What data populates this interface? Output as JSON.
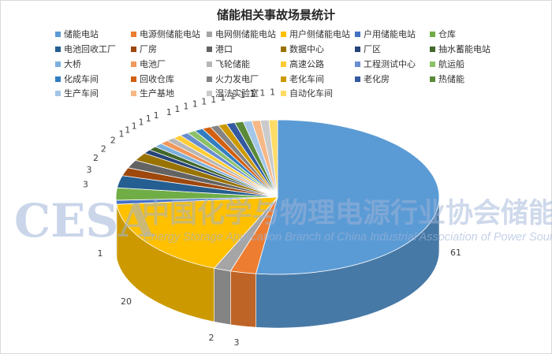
{
  "chart_data": {
    "type": "pie",
    "title": "储能相关事故场景统计",
    "legend_position": "top",
    "categories": [
      "储能电站",
      "电源侧储能电站",
      "电网侧储能电站",
      "用户侧储能电站",
      "户用储能电站",
      "仓库",
      "电池回收工厂",
      "厂房",
      "港口",
      "数据中心",
      "厂区",
      "抽水蓄能电站",
      "大桥",
      "电池厂",
      "飞轮储能",
      "高速公路",
      "工程测试中心",
      "航运船",
      "化成车间",
      "回收仓库",
      "火力发电厂",
      "老化车间",
      "老化房",
      "热储能",
      "生产车间",
      "生产基地",
      "湿法实验室",
      "自动化车间"
    ],
    "values": [
      61,
      3,
      2,
      20,
      1,
      3,
      3,
      2,
      2,
      2,
      1,
      1,
      1,
      1,
      1,
      1,
      1,
      1,
      1,
      1,
      1,
      1,
      1,
      1,
      1,
      1,
      1,
      1
    ],
    "colors": [
      "#5b9bd5",
      "#ed7d31",
      "#a5a5a5",
      "#ffc000",
      "#4472c4",
      "#70ad47",
      "#255e91",
      "#9e480e",
      "#636363",
      "#997300",
      "#264478",
      "#43682b",
      "#7cafdd",
      "#f1975a",
      "#b7b7b7",
      "#ffcd33",
      "#698ed0",
      "#8cc168",
      "#327dc2",
      "#d26012",
      "#848484",
      "#cc9a00",
      "#335aa1",
      "#5a8a39",
      "#a4c6e8",
      "#f6b887",
      "#cbcbcb",
      "#ffdc66"
    ],
    "data_labels": [
      "61",
      "3",
      "2",
      "20",
      "1",
      "3",
      "3",
      "2",
      "2",
      "2",
      "1",
      "1",
      "1",
      "1",
      "1",
      "1",
      "1",
      "1",
      "1",
      "1",
      "1",
      "1",
      "1",
      "1",
      "1",
      "1",
      "1",
      "1"
    ]
  },
  "watermark": {
    "logo": "CESA",
    "org_cn": "中国化学与物理电源行业协会储能应用分会",
    "org_en": "Energy Storage Application Branch of China Industrial Association of Power Sources"
  }
}
